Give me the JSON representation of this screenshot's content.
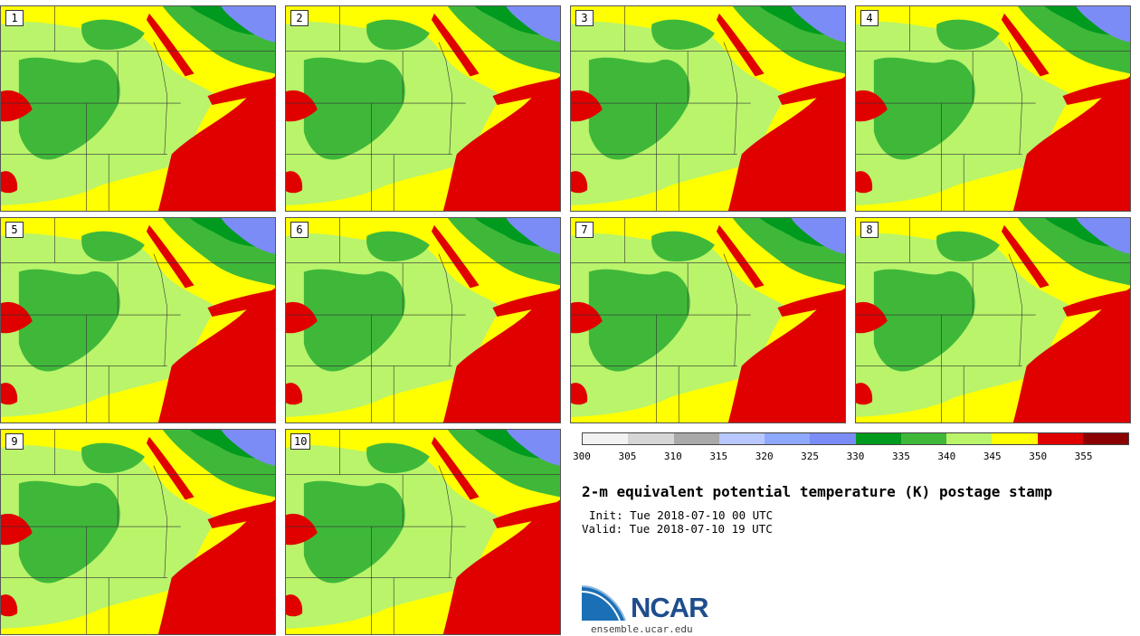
{
  "panels": [
    {
      "label": "1"
    },
    {
      "label": "2"
    },
    {
      "label": "3"
    },
    {
      "label": "4"
    },
    {
      "label": "5"
    },
    {
      "label": "6"
    },
    {
      "label": "7"
    },
    {
      "label": "8"
    },
    {
      "label": "9"
    },
    {
      "label": "10"
    }
  ],
  "colorbar": {
    "colors": [
      "#f2f2f2",
      "#d6d6d6",
      "#a9a9a9",
      "#b8c8ff",
      "#8ea8ff",
      "#7b8cf6",
      "#009a1f",
      "#3fb83a",
      "#b9f46b",
      "#ffff00",
      "#e00000",
      "#8b0000"
    ],
    "ticks": [
      "300",
      "305",
      "310",
      "315",
      "320",
      "325",
      "330",
      "335",
      "340",
      "345",
      "350",
      "355"
    ]
  },
  "title": "2-m equivalent potential temperature (K) postage stamp",
  "init": "Init: Tue 2018-07-10 00 UTC",
  "valid": "Valid: Tue 2018-07-10 19 UTC",
  "logo": {
    "name": "NCAR",
    "url": "ensemble.ucar.edu"
  }
}
